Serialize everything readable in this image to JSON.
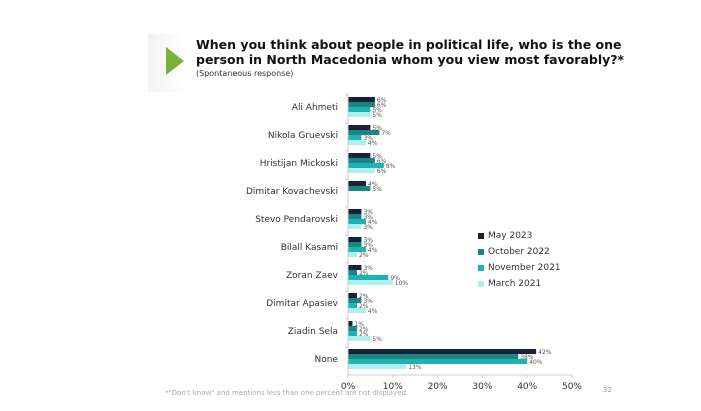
{
  "title": "When you think about people in political life, who is the one person in North Macedonia whom you view most favorably?*",
  "subtitle": "(Spontaneous response)",
  "footnote": "*\"Don't know\" and mentions less than one percent are not displayed.",
  "page_number": "32",
  "chart_data": {
    "type": "bar",
    "orientation": "horizontal",
    "categories": [
      "Ali Ahmeti",
      "Nikola Gruevski",
      "Hristijan Mickoski",
      "Dimitar Kovachevski",
      "Stevo Pendarovski",
      "Bilall Kasami",
      "Zoran Zaev",
      "Dimitar Apasiev",
      "Ziadin Sela",
      "None"
    ],
    "series": [
      {
        "name": "May 2023",
        "color": "#17223a",
        "values": [
          6,
          5,
          5,
          4,
          3,
          3,
          3,
          2,
          1,
          42
        ]
      },
      {
        "name": "October 2022",
        "color": "#1d8581",
        "values": [
          6,
          7,
          6,
          5,
          3,
          3,
          2,
          3,
          2,
          38
        ]
      },
      {
        "name": "November 2021",
        "color": "#1bb3b3",
        "values": [
          5,
          3,
          8,
          null,
          4,
          4,
          9,
          2,
          2,
          40
        ]
      },
      {
        "name": "March 2021",
        "color": "#aeeeee",
        "values": [
          5,
          4,
          6,
          null,
          3,
          2,
          10,
          4,
          5,
          13
        ]
      }
    ],
    "xlim": [
      0,
      50
    ],
    "xticks": [
      "0%",
      "10%",
      "20%",
      "30%",
      "40%",
      "50%"
    ],
    "legend": "right",
    "grid": false
  }
}
